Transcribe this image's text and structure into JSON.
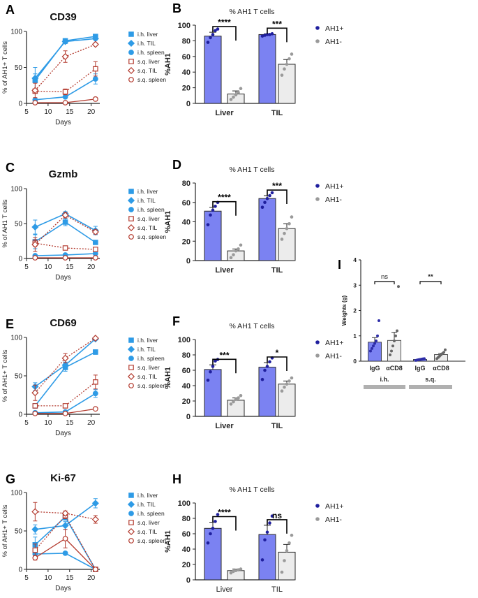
{
  "colors": {
    "ih": "#2e9be6",
    "sq": "#b33a2e",
    "ah1pos_fill": "#7b82f2",
    "ah1pos_dot": "#1f1f9e",
    "ah1neg_fill": "#ececec",
    "ah1neg_dot": "#9a9a9a",
    "bar_edge": "#2a2a2a",
    "igg_dot": "#2c2ca8",
    "acd8_dot": "#666666",
    "group_band": "#b0b0b0"
  },
  "chart_data": [
    {
      "id": "A",
      "type": "line",
      "title": "CD39",
      "xlabel": "Days",
      "ylabel": "% of AH1+ T cells",
      "xlim": [
        5,
        22
      ],
      "ylim": [
        0,
        100
      ],
      "xticks": [
        "5",
        "10",
        "15",
        "20"
      ],
      "yticks": [
        "0",
        "50",
        "100"
      ],
      "x": [
        7,
        14,
        21
      ],
      "series": [
        {
          "name": "i.h. liver",
          "group": "ih",
          "marker": "square",
          "values": [
            32,
            87,
            93
          ],
          "err": [
            18,
            3,
            2
          ]
        },
        {
          "name": "i.h. TIL",
          "group": "ih",
          "marker": "diamond",
          "values": [
            35,
            86,
            90
          ],
          "err": [
            6,
            3,
            2
          ]
        },
        {
          "name": "i.h. spleen",
          "group": "ih",
          "marker": "circle",
          "values": [
            5,
            9,
            34
          ],
          "err": [
            2,
            2,
            7
          ]
        },
        {
          "name": "s.q. liver",
          "group": "sq",
          "marker": "square",
          "values": [
            17,
            16,
            48
          ],
          "err": [
            2,
            4,
            10
          ]
        },
        {
          "name": "s.q. TIL",
          "group": "sq",
          "marker": "diamond",
          "values": [
            18,
            65,
            82
          ],
          "err": [
            10,
            8,
            2
          ]
        },
        {
          "name": "s.q. spleen",
          "group": "sq",
          "marker": "circle",
          "values": [
            1,
            1,
            6
          ],
          "err": [
            0,
            0,
            1
          ]
        }
      ]
    },
    {
      "id": "C",
      "type": "line",
      "title": "Gzmb",
      "xlabel": "Days",
      "ylabel": "% of AH1 T cells",
      "xlim": [
        5,
        22
      ],
      "ylim": [
        0,
        100
      ],
      "xticks": [
        "5",
        "10",
        "15",
        "20"
      ],
      "yticks": [
        "0",
        "50",
        "100"
      ],
      "x": [
        7,
        14,
        21
      ],
      "series": [
        {
          "name": "i.h. liver",
          "group": "ih",
          "marker": "square",
          "values": [
            24,
            52,
            23
          ],
          "err": [
            10,
            5,
            3
          ]
        },
        {
          "name": "i.h. TIL",
          "group": "ih",
          "marker": "diamond",
          "values": [
            45,
            64,
            40
          ],
          "err": [
            10,
            3,
            6
          ]
        },
        {
          "name": "i.h. spleen",
          "group": "ih",
          "marker": "circle",
          "values": [
            4,
            5,
            7
          ],
          "err": [
            1,
            1,
            2
          ]
        },
        {
          "name": "s.q. liver",
          "group": "sq",
          "marker": "square",
          "values": [
            22,
            15,
            13
          ],
          "err": [
            5,
            1,
            1
          ]
        },
        {
          "name": "s.q. TIL",
          "group": "sq",
          "marker": "diamond",
          "values": [
            20,
            62,
            38
          ],
          "err": [
            10,
            4,
            3
          ]
        },
        {
          "name": "s.q. spleen",
          "group": "sq",
          "marker": "circle",
          "values": [
            1,
            1,
            1
          ],
          "err": [
            0,
            0,
            0
          ]
        }
      ]
    },
    {
      "id": "E",
      "type": "line",
      "title": "CD69",
      "xlabel": "Days",
      "ylabel": "% of AH1+ T cells",
      "xlim": [
        5,
        22
      ],
      "ylim": [
        0,
        100
      ],
      "xticks": [
        "5",
        "10",
        "15",
        "20"
      ],
      "yticks": [
        "0",
        "50",
        "100"
      ],
      "x": [
        7,
        14,
        21
      ],
      "series": [
        {
          "name": "i.h. liver",
          "group": "ih",
          "marker": "square",
          "values": [
            11,
            61,
            81
          ],
          "err": [
            3,
            5,
            3
          ]
        },
        {
          "name": "i.h. TIL",
          "group": "ih",
          "marker": "diamond",
          "values": [
            36,
            64,
            98
          ],
          "err": [
            5,
            4,
            1
          ]
        },
        {
          "name": "i.h. spleen",
          "group": "ih",
          "marker": "circle",
          "values": [
            2,
            3,
            27
          ],
          "err": [
            1,
            1,
            5
          ]
        },
        {
          "name": "s.q. liver",
          "group": "sq",
          "marker": "square",
          "values": [
            11,
            11,
            42
          ],
          "err": [
            2,
            1,
            9
          ]
        },
        {
          "name": "s.q. TIL",
          "group": "sq",
          "marker": "diamond",
          "values": [
            28,
            73,
            99
          ],
          "err": [
            10,
            6,
            1
          ]
        },
        {
          "name": "s.q. spleen",
          "group": "sq",
          "marker": "circle",
          "values": [
            1,
            1,
            7
          ],
          "err": [
            0,
            0,
            1
          ]
        }
      ]
    },
    {
      "id": "G",
      "type": "line",
      "title": "Ki-67",
      "xlabel": "Days",
      "ylabel": "% of AH1+ T cells",
      "xlim": [
        5,
        22
      ],
      "ylim": [
        0,
        100
      ],
      "xticks": [
        "5",
        "10",
        "15",
        "20"
      ],
      "yticks": [
        "0",
        "50",
        "100"
      ],
      "x": [
        7,
        14,
        21
      ],
      "series": [
        {
          "name": "i.h. liver",
          "group": "ih",
          "marker": "square",
          "values": [
            32,
            68,
            0
          ],
          "err": [
            10,
            4,
            0
          ]
        },
        {
          "name": "i.h. TIL",
          "group": "ih",
          "marker": "diamond",
          "values": [
            52,
            57,
            86
          ],
          "err": [
            6,
            5,
            6
          ]
        },
        {
          "name": "i.h. spleen",
          "group": "ih",
          "marker": "circle",
          "values": [
            20,
            21,
            0
          ],
          "err": [
            3,
            2,
            0
          ]
        },
        {
          "name": "s.q. liver",
          "group": "sq",
          "marker": "square",
          "values": [
            25,
            70,
            0
          ],
          "err": [
            8,
            4,
            0
          ]
        },
        {
          "name": "s.q. TIL",
          "group": "sq",
          "marker": "diamond",
          "values": [
            75,
            73,
            65
          ],
          "err": [
            12,
            3,
            5
          ]
        },
        {
          "name": "s.q. spleen",
          "group": "sq",
          "marker": "circle",
          "values": [
            15,
            40,
            0
          ],
          "err": [
            3,
            12,
            0
          ]
        }
      ]
    },
    {
      "id": "B",
      "type": "bar",
      "title": "% AH1 T cells",
      "ylabel": "%AH1",
      "ylim": [
        0,
        100
      ],
      "yticks": [
        "0",
        "20",
        "40",
        "60",
        "80",
        "100"
      ],
      "categories": [
        "Liver",
        "TIL"
      ],
      "bold_categories": true,
      "legend": [
        "AH1+",
        "AH1-"
      ],
      "series": [
        {
          "name": "AH1+",
          "values": [
            86,
            88
          ],
          "err": [
            5,
            1
          ],
          "points": [
            [
              78,
              84,
              88,
              93,
              95
            ],
            [
              86,
              87,
              88,
              88,
              89
            ]
          ]
        },
        {
          "name": "AH1-",
          "values": [
            12,
            50
          ],
          "err": [
            4,
            6
          ],
          "points": [
            [
              5,
              8,
              11,
              14,
              19
            ],
            [
              36,
              44,
              50,
              57,
              63
            ]
          ]
        }
      ],
      "significance": [
        "****",
        "***"
      ]
    },
    {
      "id": "D",
      "type": "bar",
      "title": "% AH1 T cells",
      "ylabel": "%AH1",
      "ylim": [
        0,
        80
      ],
      "yticks": [
        "0",
        "20",
        "40",
        "60",
        "80"
      ],
      "categories": [
        "Liver",
        "TIL"
      ],
      "bold_categories": true,
      "legend": [
        "AH1+",
        "AH1-"
      ],
      "series": [
        {
          "name": "AH1+",
          "values": [
            51,
            64
          ],
          "err": [
            4,
            3
          ],
          "points": [
            [
              37,
              47,
              52,
              56,
              60
            ],
            [
              55,
              60,
              64,
              67,
              70
            ]
          ]
        },
        {
          "name": "AH1-",
          "values": [
            10,
            33
          ],
          "err": [
            2,
            5
          ],
          "points": [
            [
              3,
              6,
              10,
              12,
              16
            ],
            [
              22,
              28,
              33,
              38,
              45
            ]
          ]
        }
      ],
      "significance": [
        "****",
        "***"
      ]
    },
    {
      "id": "F",
      "type": "bar",
      "title": "% AH1 T cells",
      "ylabel": "%AH1",
      "ylim": [
        0,
        100
      ],
      "yticks": [
        "0",
        "20",
        "40",
        "60",
        "80",
        "100"
      ],
      "categories": [
        "Liver",
        "TIL"
      ],
      "bold_categories": true,
      "legend": [
        "AH1+",
        "AH1-"
      ],
      "series": [
        {
          "name": "AH1+",
          "values": [
            61,
            64
          ],
          "err": [
            6,
            6
          ],
          "points": [
            [
              47,
              58,
              65,
              72,
              74
            ],
            [
              48,
              60,
              65,
              71,
              76
            ]
          ]
        },
        {
          "name": "AH1-",
          "values": [
            21,
            42
          ],
          "err": [
            3,
            4
          ],
          "points": [
            [
              16,
              19,
              22,
              24,
              27
            ],
            [
              33,
              38,
              42,
              46,
              50
            ]
          ]
        }
      ],
      "significance": [
        "***",
        "*"
      ]
    },
    {
      "id": "H",
      "type": "bar",
      "title": "% AH1 T cells",
      "ylabel": "%AH1",
      "ylim": [
        0,
        100
      ],
      "yticks": [
        "0",
        "20",
        "40",
        "60",
        "80",
        "100"
      ],
      "categories": [
        "Liver",
        "TIL"
      ],
      "bold_categories": false,
      "legend": [
        "AH1+",
        "AH1-"
      ],
      "series": [
        {
          "name": "AH1+",
          "values": [
            67,
            59
          ],
          "err": [
            8,
            12
          ],
          "points": [
            [
              48,
              60,
              67,
              76,
              85
            ],
            [
              26,
              52,
              62,
              74,
              83
            ]
          ]
        },
        {
          "name": "AH1-",
          "values": [
            12,
            36
          ],
          "err": [
            2,
            10
          ],
          "points": [
            [
              9,
              11,
              12,
              13,
              14
            ],
            [
              10,
              25,
              38,
              48,
              58
            ]
          ]
        }
      ],
      "significance": [
        "****",
        "ns"
      ]
    },
    {
      "id": "I",
      "type": "bar",
      "title": "",
      "ylabel": "Weights (g)",
      "ylim": [
        0,
        4
      ],
      "yticks": [
        "0",
        "1",
        "2",
        "3",
        "4"
      ],
      "categories": [
        "IgG",
        "αCD8",
        "IgG",
        "αCD8"
      ],
      "groups": [
        "i.h.",
        "s.q."
      ],
      "values": [
        0.75,
        0.82,
        0.07,
        0.26
      ],
      "err": [
        0.18,
        0.32,
        0.01,
        0.05
      ],
      "points": [
        [
          0.4,
          0.5,
          0.6,
          0.7,
          0.8,
          1.0,
          1.6
        ],
        [
          0.25,
          0.4,
          0.6,
          0.8,
          1.0,
          1.2,
          2.95
        ],
        [
          0.03,
          0.05,
          0.06,
          0.07,
          0.08,
          0.09,
          0.1
        ],
        [
          0.1,
          0.15,
          0.2,
          0.25,
          0.3,
          0.35,
          0.45
        ]
      ],
      "significance": [
        "ns",
        "**"
      ]
    }
  ],
  "panel_letters": {
    "A": "A",
    "B": "B",
    "C": "C",
    "D": "D",
    "E": "E",
    "F": "F",
    "G": "G",
    "H": "H",
    "I": "I"
  }
}
